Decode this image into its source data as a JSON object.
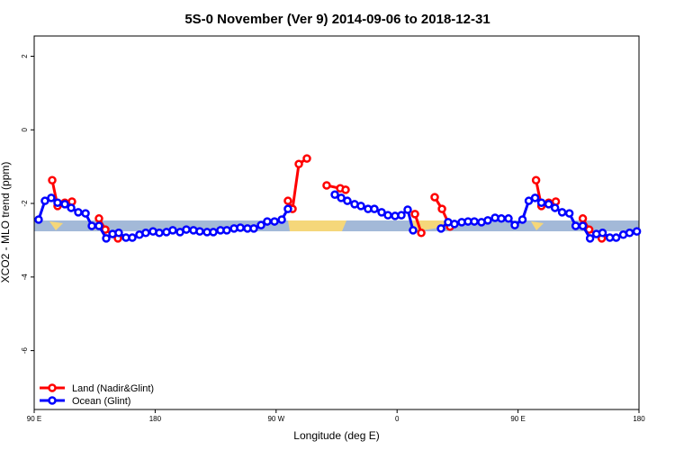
{
  "chart_data": {
    "type": "line",
    "title": "5S-0 November (Ver 9)   2014-09-06 to 2018-12-31",
    "x_label": "Longitude (deg E)",
    "y_label": "XCO2 - MLO trend (ppm)",
    "xlim": [
      90,
      540
    ],
    "ylim": [
      -7.6,
      2.55
    ],
    "xticks": [
      {
        "value": 90,
        "label": "90 E"
      },
      180,
      {
        "value": 270,
        "label": "90 W"
      },
      {
        "value": 360,
        "label": "0"
      },
      {
        "value": 450,
        "label": "90 E"
      },
      {
        "value": 540,
        "label": "180"
      }
    ],
    "yticks": [
      2,
      0,
      -2,
      -4,
      -6
    ],
    "legend": "bottom-left",
    "series": [
      {
        "name": "Land (Nadir&Glint)",
        "color": "#ff0000",
        "x": [
          103.4,
          107.4,
          112.8,
          118.1,
          128,
          138.2,
          142.9,
          152.3,
          215,
          278.8,
          282.2,
          286.9,
          292.9,
          300,
          307.6,
          317.7,
          321.7,
          350,
          373.3,
          378.0,
          383,
          388.0,
          393.4,
          399.4,
          430,
          463.4,
          467.4,
          472.8,
          478.1,
          488,
          498.2,
          502.9,
          512.3
        ],
        "values": [
          -1.37,
          -2.07,
          -1.98,
          -1.95,
          null,
          -2.41,
          -2.71,
          -2.95,
          null,
          -1.93,
          -2.15,
          -0.93,
          -0.78,
          null,
          -1.51,
          -1.59,
          -1.63,
          null,
          -2.29,
          -2.8,
          null,
          -1.83,
          -2.15,
          -2.63,
          null,
          -1.37,
          -2.07,
          -1.98,
          -1.95,
          null,
          -2.41,
          -2.71,
          -2.95
        ]
      },
      {
        "name": "Ocean (Glint)",
        "color": "#0000ff",
        "x": [
          93.3,
          98.0,
          102.7,
          107.4,
          112.8,
          117.5,
          122.8,
          128.2,
          132.9,
          138.2,
          143.6,
          148.3,
          152.9,
          158.3,
          163.0,
          168.3,
          173.0,
          178.4,
          183.1,
          188.4,
          193.1,
          198.5,
          203.2,
          208.5,
          213.2,
          218.6,
          223.3,
          228.6,
          233.3,
          238.7,
          243.4,
          248.7,
          253.4,
          258.8,
          263.4,
          268.8,
          274.2,
          278.8,
          296,
          313.7,
          318.4,
          323.0,
          328.4,
          333.1,
          338.4,
          343.1,
          348.5,
          353.2,
          358.5,
          363.2,
          367.9,
          371.9,
          382,
          392.7,
          398.0,
          402.7,
          408.1,
          412.8,
          417.5,
          422.8,
          427.5,
          432.9,
          437.6,
          442.9,
          447.6,
          453.3,
          458.0,
          462.7,
          467.4,
          472.8,
          477.5,
          482.8,
          488.2,
          492.9,
          498.2,
          503.6,
          508.3,
          512.9,
          518.3,
          523.0,
          528.3,
          533.0,
          538.4
        ],
        "values": [
          -2.44,
          -1.93,
          -1.85,
          -1.98,
          -2.02,
          -2.12,
          -2.24,
          -2.27,
          -2.61,
          -2.61,
          -2.95,
          -2.83,
          -2.8,
          -2.93,
          -2.93,
          -2.85,
          -2.8,
          -2.76,
          -2.8,
          -2.78,
          -2.73,
          -2.78,
          -2.71,
          -2.73,
          -2.76,
          -2.78,
          -2.78,
          -2.73,
          -2.73,
          -2.68,
          -2.66,
          -2.68,
          -2.68,
          -2.59,
          -2.49,
          -2.49,
          -2.44,
          -2.15,
          null,
          -1.76,
          -1.85,
          -1.93,
          -2.02,
          -2.07,
          -2.15,
          -2.15,
          -2.24,
          -2.32,
          -2.34,
          -2.32,
          -2.17,
          -2.73,
          null,
          -2.68,
          -2.51,
          -2.56,
          -2.51,
          -2.49,
          -2.49,
          -2.51,
          -2.46,
          -2.39,
          -2.41,
          -2.41,
          -2.59,
          -2.44,
          -1.93,
          -1.85,
          -1.98,
          -2.02,
          -2.12,
          -2.24,
          -2.27,
          -2.61,
          -2.61,
          -2.95,
          -2.83,
          -2.8,
          -2.93,
          -2.93,
          -2.85,
          -2.8,
          -2.76
        ]
      }
    ]
  }
}
